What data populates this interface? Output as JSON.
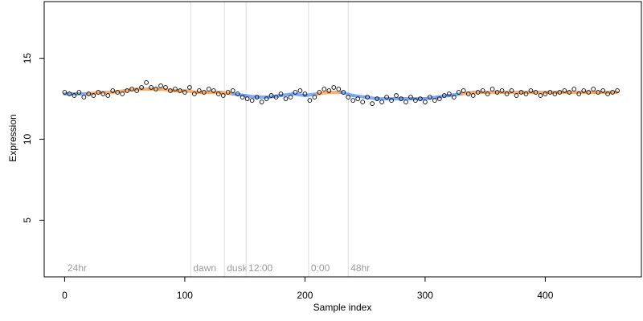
{
  "chart_data": {
    "type": "scatter",
    "xlabel": "Sample index",
    "ylabel": "Expression",
    "xlim": [
      -17,
      480
    ],
    "ylim": [
      1.5,
      18.5
    ],
    "x_ticks": [
      0,
      100,
      200,
      300,
      400
    ],
    "y_ticks": [
      5,
      10,
      15
    ],
    "grid": false,
    "vertical_lines": [
      {
        "x": 105,
        "label": "dawn"
      },
      {
        "x": 133,
        "label": "dusk"
      },
      {
        "x": 151,
        "label": "12:00"
      },
      {
        "x": 203,
        "label": "0:00"
      },
      {
        "x": 236,
        "label": "48hr"
      }
    ],
    "corner_label": "24hr",
    "series": [
      {
        "kind": "points",
        "x": [
          0,
          4,
          8,
          12,
          16,
          20,
          24,
          28,
          32,
          36,
          40,
          44,
          48,
          52,
          56,
          60,
          64,
          68,
          72,
          76,
          80,
          84,
          88,
          92,
          96,
          100,
          104,
          108,
          112,
          116,
          120,
          124,
          128,
          132,
          136,
          140,
          144,
          148,
          152,
          156,
          160,
          164,
          168,
          172,
          176,
          180,
          184,
          188,
          192,
          196,
          200,
          204,
          208,
          212,
          216,
          220,
          224,
          228,
          232,
          236,
          240,
          244,
          248,
          252,
          256,
          260,
          264,
          268,
          272,
          276,
          280,
          284,
          288,
          292,
          296,
          300,
          304,
          308,
          312,
          316,
          320,
          324,
          328,
          332,
          336,
          340,
          344,
          348,
          352,
          356,
          360,
          364,
          368,
          372,
          376,
          380,
          384,
          388,
          392,
          396,
          400,
          404,
          408,
          412,
          416,
          420,
          424,
          428,
          432,
          436,
          440,
          444,
          448,
          452,
          456,
          460
        ],
        "y": [
          12.9,
          12.8,
          12.7,
          12.9,
          12.6,
          12.8,
          12.7,
          12.9,
          12.8,
          12.7,
          13.0,
          12.9,
          12.8,
          13.0,
          13.1,
          13.0,
          13.2,
          13.5,
          13.2,
          13.1,
          13.3,
          13.2,
          13.0,
          13.1,
          13.0,
          12.9,
          13.2,
          12.8,
          13.0,
          12.9,
          13.1,
          13.0,
          12.8,
          12.7,
          12.9,
          13.0,
          12.8,
          12.6,
          12.5,
          12.4,
          12.6,
          12.3,
          12.5,
          12.7,
          12.6,
          12.8,
          12.5,
          12.6,
          12.9,
          13.0,
          12.8,
          12.4,
          12.6,
          12.9,
          13.1,
          13.0,
          13.2,
          13.1,
          12.9,
          12.6,
          12.4,
          12.5,
          12.3,
          12.6,
          12.2,
          12.5,
          12.3,
          12.6,
          12.4,
          12.7,
          12.5,
          12.3,
          12.6,
          12.4,
          12.5,
          12.3,
          12.6,
          12.4,
          12.5,
          12.7,
          12.8,
          12.6,
          12.9,
          13.0,
          12.8,
          12.7,
          12.9,
          13.0,
          12.8,
          13.1,
          12.9,
          13.0,
          12.8,
          13.0,
          12.7,
          12.9,
          12.8,
          13.0,
          12.9,
          12.7,
          12.8,
          12.9,
          12.8,
          12.9,
          13.0,
          12.9,
          13.1,
          12.8,
          13.0,
          12.9,
          13.1,
          12.9,
          13.0,
          12.8,
          12.9,
          13.0
        ]
      },
      {
        "kind": "fitted",
        "x": [
          0,
          10,
          20,
          30,
          40,
          50,
          60,
          70,
          80,
          90,
          100,
          110,
          120,
          130,
          140,
          150,
          160,
          170,
          180,
          190,
          200,
          210,
          220,
          230,
          240,
          250,
          260,
          270,
          280,
          290,
          300,
          310,
          320,
          330,
          340,
          350,
          360,
          370,
          380,
          390,
          400,
          410,
          420,
          430,
          440,
          450,
          460
        ],
        "y": [
          12.8,
          12.8,
          12.8,
          12.9,
          12.9,
          13.0,
          13.1,
          13.1,
          13.1,
          13.0,
          13.0,
          12.9,
          12.9,
          12.9,
          12.8,
          12.7,
          12.6,
          12.6,
          12.7,
          12.8,
          12.7,
          12.8,
          12.9,
          12.9,
          12.7,
          12.6,
          12.5,
          12.5,
          12.5,
          12.5,
          12.5,
          12.6,
          12.7,
          12.8,
          12.9,
          12.9,
          12.9,
          12.9,
          12.9,
          12.9,
          12.9,
          12.9,
          12.9,
          12.9,
          12.9,
          12.9,
          12.9
        ],
        "colors": {
          "high": "#f5a25d",
          "low": "#6c9df5"
        }
      }
    ]
  }
}
